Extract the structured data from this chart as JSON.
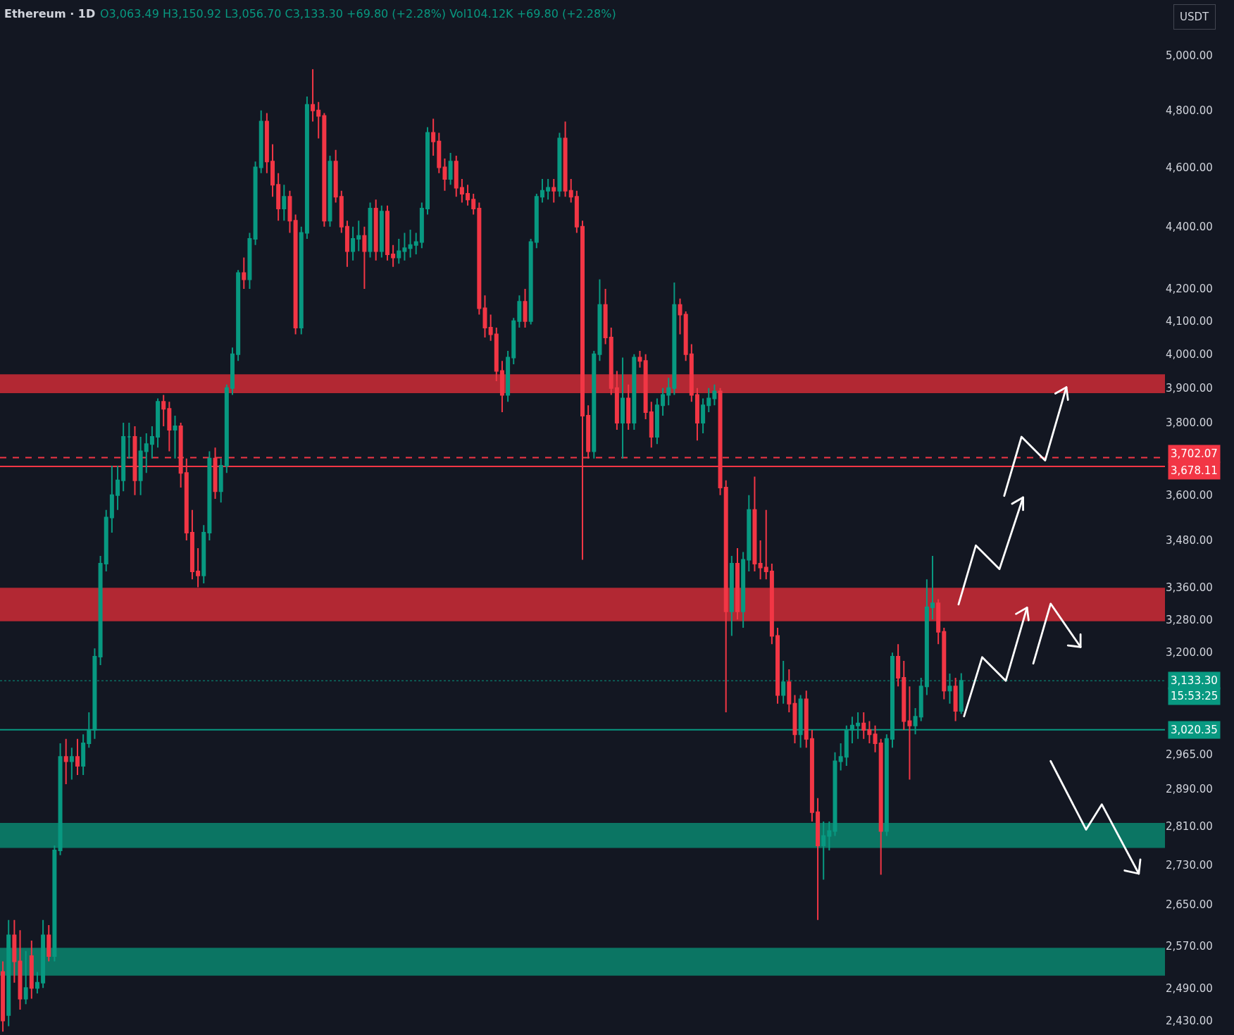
{
  "chart_data": {
    "type": "candlestick",
    "title": "Ethereum · 1D",
    "subtitle": "O3,063.49 H3,150.92 L3,056.70 C3,133.30 +69.80 (+2.28%) Vol104.12K +69.80 (+2.28%)",
    "ylabel": "USDT",
    "categories": [
      null,
      null,
      null,
      null,
      null,
      null,
      null,
      null,
      null,
      null,
      null,
      null,
      null,
      null,
      null,
      null,
      null,
      null,
      null,
      null,
      null,
      null,
      null,
      null,
      null,
      null,
      null,
      null,
      null,
      null,
      null,
      null,
      null,
      null,
      null,
      null,
      null,
      null,
      null,
      null,
      null,
      null,
      null,
      null,
      null,
      null,
      null,
      null,
      null,
      null,
      null,
      null,
      null,
      null,
      null,
      null,
      null,
      null,
      null,
      null,
      null,
      null,
      null,
      null,
      null,
      null,
      null,
      null,
      null,
      null,
      null,
      null,
      null,
      null,
      null,
      null,
      null,
      null,
      null,
      null,
      null,
      null,
      null,
      null,
      null,
      null,
      null,
      null,
      null,
      null,
      null,
      null,
      null,
      null,
      null,
      null,
      null,
      null,
      null,
      null,
      null,
      null,
      null,
      null,
      null,
      null,
      null,
      null,
      null,
      null,
      null,
      null,
      null,
      null,
      null,
      null,
      null,
      null,
      null,
      null,
      null,
      null,
      null,
      null,
      null,
      null,
      null,
      null,
      null,
      null,
      null,
      null,
      null,
      null,
      null,
      null,
      null,
      null,
      null,
      null,
      null,
      null,
      null,
      null,
      null,
      null,
      null,
      null,
      null,
      null,
      null,
      null,
      null,
      null,
      null,
      null,
      null,
      null,
      null,
      null,
      null,
      null,
      null,
      null,
      null,
      null,
      null,
      null,
      null,
      null,
      null,
      null,
      null,
      null,
      null,
      null,
      null,
      null,
      null,
      null,
      null,
      null,
      null,
      null,
      null,
      null,
      null,
      null,
      null,
      null,
      null,
      null,
      null,
      null,
      null,
      null,
      null,
      null,
      null,
      null,
      null,
      null,
      null
    ],
    "ohlc": [
      [
        2520,
        2540,
        2410,
        2430
      ],
      [
        2440,
        2620,
        2420,
        2590
      ],
      [
        2590,
        2620,
        2500,
        2540
      ],
      [
        2540,
        2600,
        2450,
        2470
      ],
      [
        2470,
        2560,
        2460,
        2490
      ],
      [
        2550,
        2580,
        2470,
        2490
      ],
      [
        2490,
        2520,
        2480,
        2500
      ],
      [
        2500,
        2620,
        2490,
        2590
      ],
      [
        2590,
        2610,
        2540,
        2550
      ],
      [
        2550,
        2770,
        2540,
        2760
      ],
      [
        2760,
        2990,
        2750,
        2960
      ],
      [
        2960,
        3000,
        2900,
        2950
      ],
      [
        2950,
        2980,
        2910,
        2960
      ],
      [
        2960,
        3000,
        2920,
        2940
      ],
      [
        2940,
        3010,
        2920,
        2990
      ],
      [
        2990,
        3060,
        2980,
        3020
      ],
      [
        3020,
        3210,
        3000,
        3190
      ],
      [
        3190,
        3440,
        3170,
        3420
      ],
      [
        3420,
        3560,
        3400,
        3540
      ],
      [
        3540,
        3680,
        3500,
        3600
      ],
      [
        3600,
        3680,
        3560,
        3640
      ],
      [
        3640,
        3800,
        3610,
        3760
      ],
      [
        3760,
        3800,
        3700,
        3760
      ],
      [
        3760,
        3790,
        3600,
        3640
      ],
      [
        3640,
        3760,
        3600,
        3720
      ],
      [
        3720,
        3770,
        3660,
        3740
      ],
      [
        3740,
        3790,
        3700,
        3760
      ],
      [
        3760,
        3870,
        3730,
        3860
      ],
      [
        3860,
        3880,
        3790,
        3840
      ],
      [
        3840,
        3860,
        3720,
        3780
      ],
      [
        3780,
        3820,
        3700,
        3790
      ],
      [
        3790,
        3800,
        3620,
        3660
      ],
      [
        3660,
        3700,
        3480,
        3500
      ],
      [
        3500,
        3560,
        3380,
        3400
      ],
      [
        3400,
        3460,
        3360,
        3390
      ],
      [
        3390,
        3520,
        3370,
        3500
      ],
      [
        3500,
        3720,
        3480,
        3700
      ],
      [
        3700,
        3730,
        3590,
        3610
      ],
      [
        3610,
        3700,
        3580,
        3680
      ],
      [
        3680,
        3910,
        3660,
        3900
      ],
      [
        3900,
        4020,
        3880,
        4000
      ],
      [
        4000,
        4260,
        3980,
        4250
      ],
      [
        4250,
        4300,
        4200,
        4230
      ],
      [
        4230,
        4380,
        4200,
        4360
      ],
      [
        4360,
        4620,
        4340,
        4600
      ],
      [
        4600,
        4800,
        4580,
        4760
      ],
      [
        4760,
        4790,
        4580,
        4620
      ],
      [
        4620,
        4680,
        4500,
        4540
      ],
      [
        4540,
        4580,
        4420,
        4460
      ],
      [
        4460,
        4540,
        4420,
        4500
      ],
      [
        4500,
        4520,
        4380,
        4420
      ],
      [
        4420,
        4440,
        4060,
        4080
      ],
      [
        4080,
        4400,
        4060,
        4380
      ],
      [
        4380,
        4850,
        4360,
        4820
      ],
      [
        4820,
        4950,
        4760,
        4800
      ],
      [
        4800,
        4830,
        4700,
        4780
      ],
      [
        4780,
        4790,
        4400,
        4420
      ],
      [
        4420,
        4640,
        4400,
        4620
      ],
      [
        4620,
        4660,
        4480,
        4500
      ],
      [
        4500,
        4520,
        4380,
        4400
      ],
      [
        4400,
        4420,
        4270,
        4320
      ],
      [
        4320,
        4400,
        4290,
        4360
      ],
      [
        4360,
        4420,
        4320,
        4370
      ],
      [
        4370,
        4400,
        4200,
        4320
      ],
      [
        4320,
        4480,
        4300,
        4460
      ],
      [
        4460,
        4490,
        4290,
        4320
      ],
      [
        4320,
        4470,
        4300,
        4450
      ],
      [
        4450,
        4470,
        4290,
        4310
      ],
      [
        4310,
        4340,
        4270,
        4300
      ],
      [
        4300,
        4360,
        4280,
        4320
      ],
      [
        4320,
        4380,
        4290,
        4330
      ],
      [
        4330,
        4390,
        4300,
        4340
      ],
      [
        4340,
        4380,
        4310,
        4350
      ],
      [
        4350,
        4480,
        4330,
        4460
      ],
      [
        4460,
        4740,
        4440,
        4720
      ],
      [
        4720,
        4770,
        4640,
        4690
      ],
      [
        4690,
        4720,
        4580,
        4600
      ],
      [
        4600,
        4630,
        4520,
        4560
      ],
      [
        4560,
        4650,
        4540,
        4620
      ],
      [
        4620,
        4640,
        4500,
        4530
      ],
      [
        4530,
        4560,
        4480,
        4510
      ],
      [
        4510,
        4540,
        4470,
        4490
      ],
      [
        4490,
        4510,
        4440,
        4460
      ],
      [
        4460,
        4480,
        4120,
        4140
      ],
      [
        4140,
        4180,
        4050,
        4080
      ],
      [
        4080,
        4120,
        4040,
        4060
      ],
      [
        4060,
        4080,
        3920,
        3950
      ],
      [
        3950,
        3980,
        3830,
        3880
      ],
      [
        3880,
        4010,
        3860,
        3990
      ],
      [
        3990,
        4110,
        3970,
        4100
      ],
      [
        4100,
        4180,
        4080,
        4160
      ],
      [
        4160,
        4200,
        4080,
        4100
      ],
      [
        4100,
        4360,
        4090,
        4350
      ],
      [
        4350,
        4510,
        4330,
        4500
      ],
      [
        4500,
        4560,
        4480,
        4520
      ],
      [
        4520,
        4560,
        4490,
        4530
      ],
      [
        4530,
        4560,
        4480,
        4520
      ],
      [
        4520,
        4720,
        4500,
        4700
      ],
      [
        4700,
        4760,
        4500,
        4520
      ],
      [
        4520,
        4560,
        4480,
        4500
      ],
      [
        4500,
        4520,
        4380,
        4400
      ],
      [
        4400,
        4420,
        3430,
        3820
      ],
      [
        3820,
        3850,
        3700,
        3720
      ],
      [
        3720,
        4010,
        3700,
        4000
      ],
      [
        4000,
        4230,
        3980,
        4150
      ],
      [
        4150,
        4200,
        4030,
        4050
      ],
      [
        4050,
        4080,
        3880,
        3900
      ],
      [
        3900,
        3950,
        3780,
        3800
      ],
      [
        3800,
        3990,
        3700,
        3870
      ],
      [
        3870,
        3910,
        3780,
        3800
      ],
      [
        3800,
        4000,
        3780,
        3990
      ],
      [
        3990,
        4010,
        3960,
        3980
      ],
      [
        3980,
        4000,
        3810,
        3830
      ],
      [
        3830,
        3860,
        3730,
        3760
      ],
      [
        3760,
        3870,
        3740,
        3850
      ],
      [
        3850,
        3900,
        3820,
        3880
      ],
      [
        3880,
        3930,
        3850,
        3900
      ],
      [
        3900,
        4220,
        3880,
        4150
      ],
      [
        4150,
        4170,
        4060,
        4120
      ],
      [
        4120,
        4130,
        3980,
        4000
      ],
      [
        4000,
        4030,
        3860,
        3880
      ],
      [
        3880,
        3900,
        3750,
        3800
      ],
      [
        3800,
        3870,
        3770,
        3850
      ],
      [
        3850,
        3900,
        3830,
        3870
      ],
      [
        3870,
        3910,
        3850,
        3890
      ],
      [
        3890,
        3900,
        3600,
        3620
      ],
      [
        3620,
        3640,
        3060,
        3300
      ],
      [
        3300,
        3440,
        3240,
        3420
      ],
      [
        3420,
        3460,
        3280,
        3300
      ],
      [
        3300,
        3450,
        3260,
        3430
      ],
      [
        3430,
        3600,
        3400,
        3560
      ],
      [
        3560,
        3650,
        3400,
        3420
      ],
      [
        3420,
        3480,
        3380,
        3410
      ],
      [
        3410,
        3560,
        3380,
        3400
      ],
      [
        3400,
        3420,
        3220,
        3240
      ],
      [
        3240,
        3260,
        3080,
        3100
      ],
      [
        3100,
        3180,
        3080,
        3130
      ],
      [
        3130,
        3160,
        3060,
        3080
      ],
      [
        3080,
        3100,
        2990,
        3010
      ],
      [
        3010,
        3100,
        2980,
        3090
      ],
      [
        3090,
        3110,
        2980,
        3000
      ],
      [
        3000,
        3020,
        2820,
        2840
      ],
      [
        2840,
        2870,
        2620,
        2770
      ],
      [
        2770,
        2820,
        2700,
        2790
      ],
      [
        2790,
        2820,
        2760,
        2800
      ],
      [
        2800,
        2970,
        2790,
        2950
      ],
      [
        2950,
        2990,
        2930,
        2960
      ],
      [
        2960,
        3030,
        2940,
        3020
      ],
      [
        3020,
        3050,
        2990,
        3030
      ],
      [
        3030,
        3060,
        3000,
        3035
      ],
      [
        3035,
        3060,
        3000,
        3020
      ],
      [
        3020,
        3040,
        2990,
        3010
      ],
      [
        3010,
        3030,
        2970,
        2990
      ],
      [
        2990,
        3000,
        2710,
        2800
      ],
      [
        2800,
        3010,
        2790,
        3000
      ],
      [
        3000,
        3200,
        2980,
        3190
      ],
      [
        3190,
        3220,
        3120,
        3140
      ],
      [
        3140,
        3180,
        3020,
        3040
      ],
      [
        3040,
        3120,
        2910,
        3030
      ],
      [
        3030,
        3070,
        3010,
        3050
      ],
      [
        3050,
        3140,
        3040,
        3120
      ],
      [
        3120,
        3380,
        3100,
        3310
      ],
      [
        3310,
        3440,
        3280,
        3320
      ],
      [
        3320,
        3330,
        3220,
        3250
      ],
      [
        3250,
        3260,
        3090,
        3110
      ],
      [
        3110,
        3150,
        3080,
        3120
      ],
      [
        3120,
        3140,
        3040,
        3063.49
      ],
      [
        3063.49,
        3150.92,
        3056.7,
        3133.3
      ],
      null,
      null,
      null,
      null,
      null,
      null,
      null,
      null,
      null,
      null,
      null,
      null,
      null,
      null,
      null,
      null,
      null,
      null,
      null,
      null,
      null,
      null,
      null,
      null,
      null,
      null,
      null,
      null,
      null,
      null,
      null,
      null,
      null,
      null,
      null
    ],
    "log": "y",
    "grid": false,
    "tick_labels": "y",
    "ylim": [
      2404,
      5213
    ],
    "yticks": [
      {
        "value": 2430,
        "label": "2,430.00"
      },
      {
        "value": 2490,
        "label": "2,490.00"
      },
      {
        "value": 2570,
        "label": "2,570.00"
      },
      {
        "value": 2650,
        "label": "2,650.00"
      },
      {
        "value": 2730,
        "label": "2,730.00"
      },
      {
        "value": 2810,
        "label": "2,810.00"
      },
      {
        "value": 2890,
        "label": "2,890.00"
      },
      {
        "value": 2965,
        "label": "2,965.00"
      },
      {
        "value": 3200,
        "label": "3,200.00"
      },
      {
        "value": 3280,
        "label": "3,280.00"
      },
      {
        "value": 3360,
        "label": "3,360.00"
      },
      {
        "value": 3480,
        "label": "3,480.00"
      },
      {
        "value": 3600,
        "label": "3,600.00"
      },
      {
        "value": 3800,
        "label": "3,800.00"
      },
      {
        "value": 3900,
        "label": "3,900.00"
      },
      {
        "value": 4000,
        "label": "4,000.00"
      },
      {
        "value": 4100,
        "label": "4,100.00"
      },
      {
        "value": 4200,
        "label": "4,200.00"
      },
      {
        "value": 4400,
        "label": "4,400.00"
      },
      {
        "value": 4600,
        "label": "4,600.00"
      },
      {
        "value": 4800,
        "label": "4,800.00"
      },
      {
        "value": 5000,
        "label": "5,000.00"
      }
    ],
    "bands": [
      {
        "axis": "y",
        "from": 3885,
        "to": 3940,
        "color": "#b22833"
      },
      {
        "axis": "y",
        "from": 3276,
        "to": 3359,
        "color": "#b22833"
      },
      {
        "axis": "y",
        "from": 2765,
        "to": 2817,
        "color": "#0b7563"
      },
      {
        "axis": "y",
        "from": 2513,
        "to": 2566,
        "color": "#0b7563"
      }
    ],
    "ref_lines": [
      {
        "axis": "y",
        "value": 3702.07,
        "label": "3,702.07",
        "color": "#f23645",
        "line_style": "dashed"
      },
      {
        "axis": "y",
        "value": 3678.11,
        "label": "3,678.11",
        "color": "#f23645",
        "line_style": "solid"
      },
      {
        "axis": "y",
        "value": 3133.3,
        "label": "3,133.30",
        "color": "#089981",
        "line_style": "dotted"
      },
      {
        "axis": "y",
        "value": 3020.35,
        "label": "3,020.35",
        "color": "#089981",
        "line_style": "solid"
      }
    ],
    "annotations": [
      "15:53:25"
    ]
  }
}
